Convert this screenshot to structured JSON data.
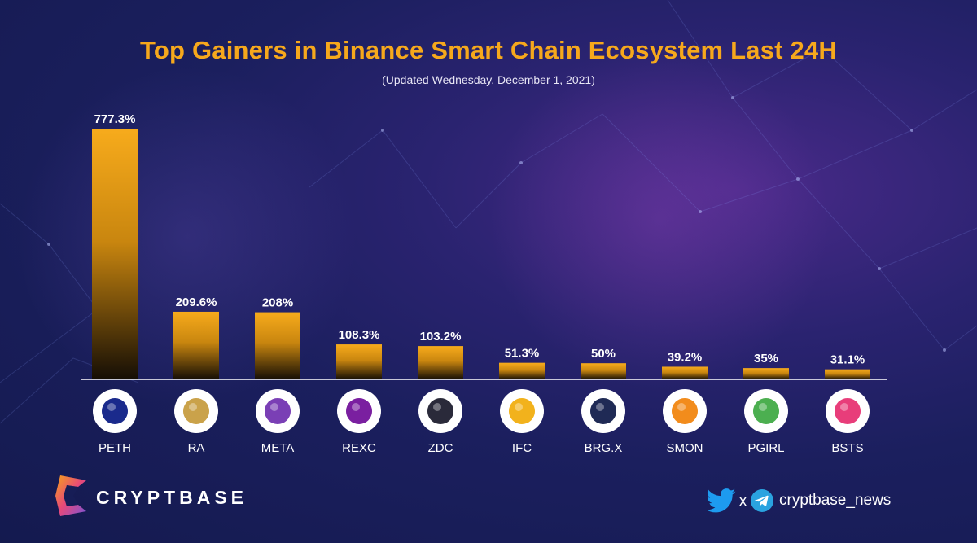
{
  "chart_data": {
    "type": "bar",
    "title": "Top Gainers in Binance Smart Chain Ecosystem Last 24H",
    "subtitle": "(Updated Wednesday, December 1, 2021)",
    "categories": [
      "PETH",
      "RA",
      "META",
      "REXC",
      "ZDC",
      "IFC",
      "BRG.X",
      "SMON",
      "PGIRL",
      "BSTS"
    ],
    "values": [
      777.3,
      209.6,
      208,
      108.3,
      103.2,
      51.3,
      50,
      39.2,
      35,
      31.1
    ],
    "value_labels": [
      "777.3%",
      "209.6%",
      "208%",
      "108.3%",
      "103.2%",
      "51.3%",
      "50%",
      "39.2%",
      "35%",
      "31.1%"
    ],
    "unit": "%",
    "ylim": [
      0,
      777.3
    ],
    "grid": false,
    "bar_color": "#f5a81b",
    "icon_names": [
      "peth-logo-icon",
      "ra-logo-icon",
      "meta-logo-icon",
      "rexc-logo-icon",
      "zdc-logo-icon",
      "ifc-logo-icon",
      "brgx-logo-icon",
      "smon-logo-icon",
      "pgirl-logo-icon",
      "bsts-logo-icon"
    ]
  },
  "brand": {
    "name": "CRYPTBASE"
  },
  "social": {
    "separator": "x",
    "handle": "cryptbase_news"
  },
  "colors": {
    "title": "#f6a81c",
    "background": "#1b1f5e",
    "bar": "#f5a81b"
  }
}
